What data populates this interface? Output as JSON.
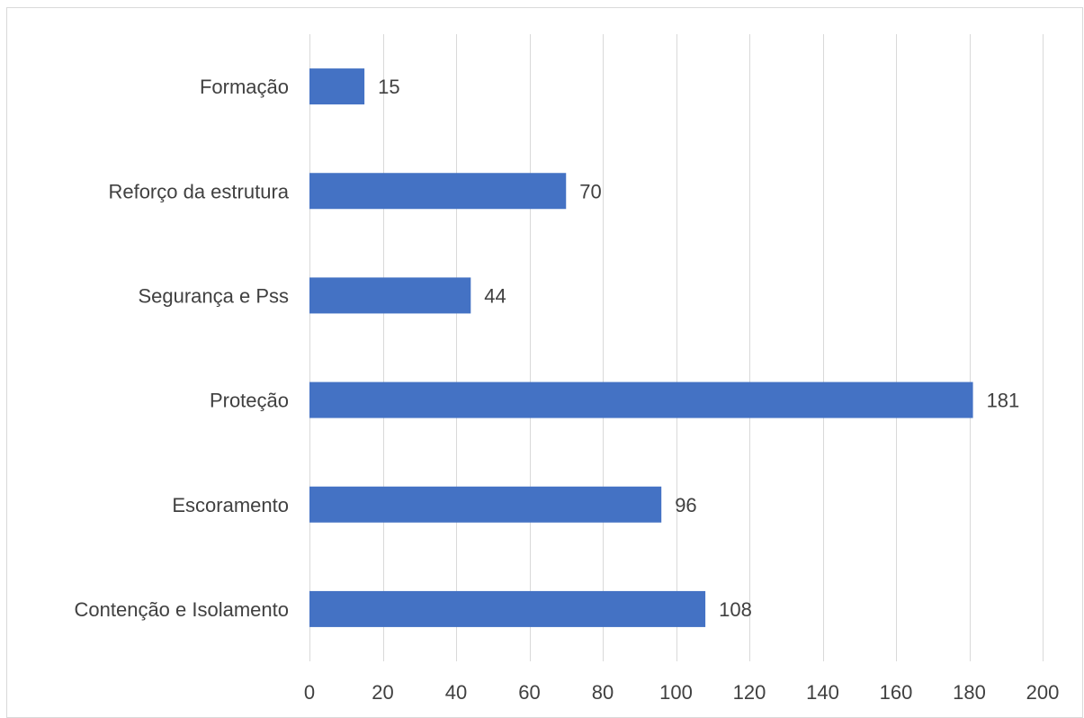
{
  "chart_data": {
    "type": "bar",
    "orientation": "horizontal",
    "title": "",
    "xlabel": "",
    "ylabel": "",
    "categories": [
      "Formação",
      "Reforço da estrutura",
      "Segurança e Pss",
      "Proteção",
      "Escoramento",
      "Contenção e  Isolamento"
    ],
    "values": [
      15,
      70,
      44,
      181,
      96,
      108
    ],
    "xlim": [
      0,
      200
    ],
    "x_ticks": [
      0,
      20,
      40,
      60,
      80,
      100,
      120,
      140,
      160,
      180,
      200
    ],
    "grid": "vertical",
    "legend": "none",
    "data_labels": true,
    "colors": {
      "bar": "#4472c4",
      "grid": "#d9d9d9",
      "text": "#404040"
    }
  }
}
